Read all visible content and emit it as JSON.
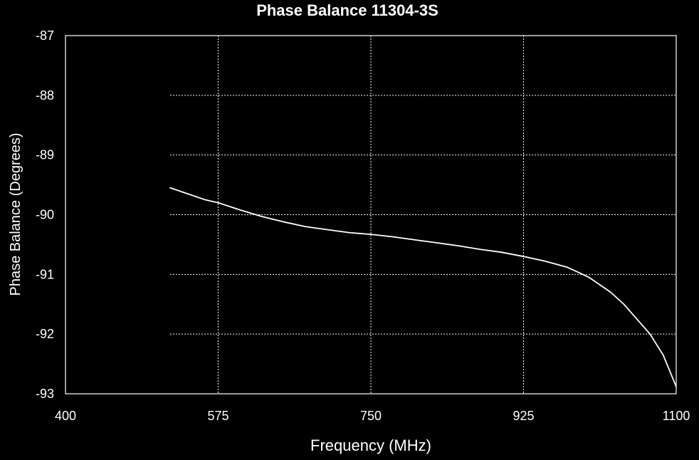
{
  "chart_data": {
    "type": "line",
    "title": "Phase Balance 11304-3S",
    "xlabel": "Frequency (MHz)",
    "ylabel": "Phase Balance (Degrees)",
    "xlim": [
      400,
      1100
    ],
    "ylim": [
      -93,
      -87
    ],
    "x_ticks": [
      400,
      575,
      750,
      925,
      1100
    ],
    "x_tick_labels": [
      "400",
      "575",
      "750",
      "925",
      "1100"
    ],
    "y_ticks": [
      -87,
      -88,
      -89,
      -90,
      -91,
      -92,
      -93
    ],
    "y_tick_labels": [
      "-87",
      "-88",
      "-89",
      "-90",
      "-91",
      "-92",
      "-93"
    ],
    "grid": true,
    "legend": "none",
    "colors": {
      "background": "#000000",
      "foreground": "#ffffff",
      "series": "#ffffff"
    },
    "series": [
      {
        "values_x": [
          520,
          540,
          560,
          575,
          600,
          625,
          650,
          675,
          700,
          725,
          750,
          775,
          800,
          825,
          850,
          875,
          900,
          925,
          950,
          975,
          990,
          1000,
          1010,
          1025,
          1040,
          1055,
          1070,
          1085,
          1100
        ],
        "values": [
          -89.55,
          -89.65,
          -89.75,
          -89.8,
          -89.92,
          -90.03,
          -90.12,
          -90.2,
          -90.25,
          -90.3,
          -90.33,
          -90.37,
          -90.42,
          -90.47,
          -90.52,
          -90.58,
          -90.63,
          -90.7,
          -90.78,
          -90.88,
          -90.98,
          -91.05,
          -91.15,
          -91.3,
          -91.5,
          -91.75,
          -92.0,
          -92.35,
          -92.88
        ]
      }
    ]
  }
}
